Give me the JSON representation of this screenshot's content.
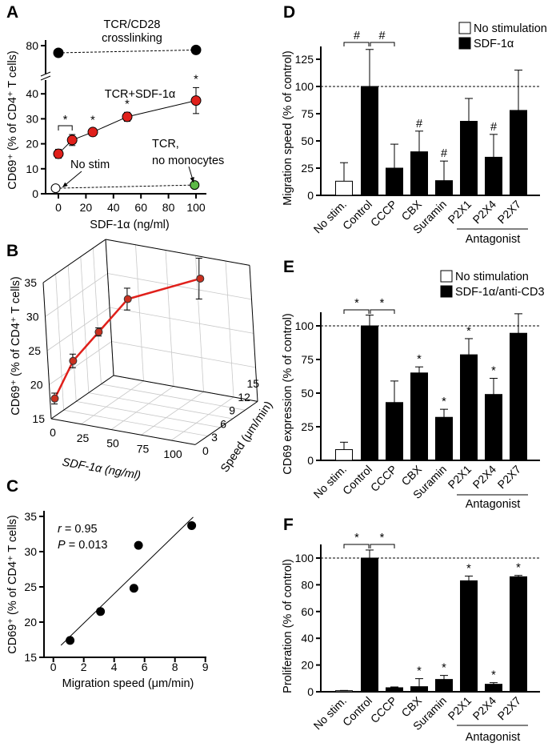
{
  "chart_data": [
    {
      "panel": "A",
      "type": "line",
      "xlabel": "SDF-1α (ng/ml)",
      "ylabel": "CD69⁺ (% of CD4⁺ T cells)",
      "x_ticks": [
        0,
        20,
        40,
        60,
        80,
        100
      ],
      "y_ticks": [
        0,
        10,
        20,
        30,
        40,
        80
      ],
      "y_axis_break": true,
      "series": [
        {
          "name": "TCR/CD28 crosslinking",
          "label_lines": [
            "TCR/CD28",
            "crosslinking"
          ],
          "style": "dashed",
          "color": "#000000",
          "x": [
            0,
            100
          ],
          "y": [
            75,
            77
          ],
          "err": [
            1.5,
            1.5
          ]
        },
        {
          "name": "TCR+SDF-1α",
          "label_lines": [
            "TCR+SDF-1α"
          ],
          "style": "solid",
          "color": "#e0201b",
          "x": [
            0,
            10,
            25,
            50,
            100
          ],
          "y": [
            16,
            21.5,
            24.7,
            30.8,
            37.3
          ],
          "err": [
            1.8,
            2.2,
            1.5,
            1.8,
            5.2
          ]
        },
        {
          "name": "No stim",
          "label_lines": [
            "No stim"
          ],
          "style": "dashed",
          "color": "#ffffff",
          "x": [
            -2
          ],
          "y": [
            2.2
          ],
          "err": [
            0
          ]
        },
        {
          "name": "TCR, no monocytes",
          "label_lines": [
            "TCR,",
            "no monocytes"
          ],
          "style": "dashed",
          "color": "#5cb947",
          "x": [
            99
          ],
          "y": [
            3.5
          ],
          "err": [
            0
          ]
        }
      ],
      "significance": {
        "marker": "*",
        "at_x": [
          10,
          25,
          50,
          100
        ],
        "bracket": [
          0,
          10
        ]
      }
    },
    {
      "panel": "B",
      "type": "line3d",
      "xlabel": "SDF-1α (ng/ml)",
      "ylabel": "Speed (μm/min)",
      "zlabel": "CD69⁺ (% of CD4⁺ T cells)",
      "x_ticks": [
        0,
        25,
        50,
        75,
        100
      ],
      "y_ticks": [
        0,
        3,
        6,
        9,
        12,
        15
      ],
      "z_ticks": [
        15,
        20,
        25,
        30,
        35
      ],
      "xlim": [
        0,
        120
      ],
      "ylim": [
        0,
        15
      ],
      "zlim": [
        15,
        35
      ],
      "color": "#e0201b",
      "points": [
        {
          "sdf": 0,
          "speed": 1.1,
          "cd69": 17.5,
          "err": 0.8
        },
        {
          "sdf": 10,
          "speed": 3.1,
          "cd69": 22.5,
          "err": 1.0
        },
        {
          "sdf": 25,
          "speed": 5.3,
          "cd69": 26.3,
          "err": 0.6
        },
        {
          "sdf": 50,
          "speed": 5.6,
          "cd69": 31.8,
          "err": 1.6
        },
        {
          "sdf": 100,
          "speed": 8.9,
          "cd69": 35.0,
          "err": 3.0
        }
      ]
    },
    {
      "panel": "C",
      "type": "scatter",
      "xlabel": "Migration speed (μm/min)",
      "ylabel": "CD69⁺ (% of CD4⁺ T cells)",
      "x_tick_labels": [
        "0",
        "2",
        "4",
        "6",
        "8",
        "9"
      ],
      "y_ticks": [
        15,
        20,
        25,
        30,
        35
      ],
      "x": [
        1.1,
        3.1,
        5.3,
        5.6,
        9.1
      ],
      "y": [
        17.4,
        21.5,
        24.8,
        30.9,
        33.7
      ],
      "fit_line": {
        "x": [
          0.5,
          9.2
        ],
        "y": [
          16.7,
          34.9
        ]
      },
      "stats": {
        "r_label": "r",
        "r_value": " = 0.95",
        "p_label": "P",
        "p_value": " = 0.013"
      }
    },
    {
      "panel": "D",
      "type": "bar",
      "ylabel": "Migration speed (% of control)",
      "categories": [
        "No stim.",
        "Control",
        "CCCP",
        "CBX",
        "Suramin",
        "P2X1",
        "P2X4",
        "P2X7"
      ],
      "values": [
        13,
        100,
        25,
        40,
        13.5,
        68,
        35,
        78
      ],
      "errors": [
        17,
        34,
        22,
        19,
        18,
        21,
        21,
        37
      ],
      "y_ticks": [
        0,
        25,
        50,
        75,
        100,
        125
      ],
      "ylim": [
        0,
        135
      ],
      "reference_line": 100,
      "legend": [
        {
          "label": "No stimulation",
          "color": "#ffffff"
        },
        {
          "label": "SDF-1α",
          "color": "#000000"
        }
      ],
      "group_label": "Antagonist",
      "significance": {
        "marker": "#",
        "bars": [
          3,
          4,
          6
        ],
        "brackets": [
          [
            0,
            1
          ],
          [
            1,
            2
          ]
        ]
      }
    },
    {
      "panel": "E",
      "type": "bar",
      "ylabel": "CD69 expression (% of control)",
      "categories": [
        "No stim.",
        "Control",
        "CCCP",
        "CBX",
        "Suramin",
        "P2X1",
        "P2X4",
        "P2X7"
      ],
      "values": [
        8,
        100,
        43,
        65,
        32,
        78.5,
        49,
        94.5
      ],
      "errors": [
        5.5,
        8,
        16,
        4.5,
        6,
        12,
        12,
        14.5
      ],
      "y_ticks": [
        0,
        25,
        50,
        75,
        100
      ],
      "ylim": [
        0,
        110
      ],
      "reference_line": 100,
      "legend": [
        {
          "label": "No stimulation",
          "color": "#ffffff"
        },
        {
          "label": "SDF-1α/anti-CD3",
          "color": "#000000"
        }
      ],
      "group_label": "Antagonist",
      "significance": {
        "marker": "*",
        "bars": [
          3,
          4,
          5,
          6
        ],
        "brackets": [
          [
            0,
            1
          ],
          [
            1,
            2
          ]
        ]
      }
    },
    {
      "panel": "F",
      "type": "bar",
      "ylabel": "Proliferation (% of control)",
      "categories": [
        "No stim.",
        "Control",
        "CCCP",
        "CBX",
        "Suramin",
        "P2X1",
        "P2X4",
        "P2X7"
      ],
      "values": [
        0.8,
        100,
        3,
        3.8,
        9.2,
        83,
        5.6,
        86
      ],
      "errors": [
        0.2,
        6,
        0.6,
        6,
        3,
        3.5,
        1.2,
        1
      ],
      "y_ticks": [
        0,
        20,
        40,
        60,
        80,
        100
      ],
      "ylim": [
        0,
        110
      ],
      "reference_line": 100,
      "legend": [],
      "group_label": "Antagonist",
      "significance": {
        "marker": "*",
        "bars": [
          3,
          4,
          5,
          6,
          7
        ],
        "brackets": [
          [
            0,
            1
          ],
          [
            1,
            2
          ]
        ]
      }
    }
  ]
}
